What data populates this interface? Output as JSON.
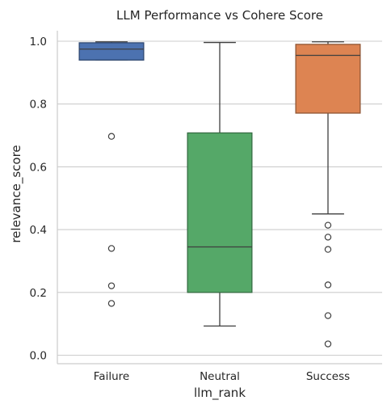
{
  "chart_data": {
    "type": "box",
    "title": "LLM Performance vs Cohere Score",
    "xlabel": "llm_rank",
    "ylabel": "relevance_score",
    "ylim": [
      -0.01,
      1.05
    ],
    "yticks": [
      0.0,
      0.2,
      0.4,
      0.6,
      0.8,
      1.0
    ],
    "ytick_labels": [
      "0.0",
      "0.2",
      "0.4",
      "0.6",
      "0.8",
      "1.0"
    ],
    "grid": "horizontal",
    "categories": [
      "Failure",
      "Neutral",
      "Success"
    ],
    "boxes": [
      {
        "category": "Failure",
        "color": "#4C72B0",
        "whisker_low": 0.94,
        "q1": 0.94,
        "median": 0.975,
        "q3": 0.995,
        "whisker_high": 0.998,
        "outliers": [
          0.697,
          0.34,
          0.221,
          0.165
        ]
      },
      {
        "category": "Neutral",
        "color": "#55A868",
        "whisker_low": 0.093,
        "q1": 0.2,
        "median": 0.345,
        "q3": 0.708,
        "whisker_high": 0.996,
        "outliers": []
      },
      {
        "category": "Success",
        "color": "#DD8452",
        "whisker_low": 0.45,
        "q1": 0.771,
        "median": 0.955,
        "q3": 0.99,
        "whisker_high": 0.998,
        "outliers": [
          0.414,
          0.376,
          0.337,
          0.224,
          0.126,
          0.036
        ]
      }
    ]
  }
}
